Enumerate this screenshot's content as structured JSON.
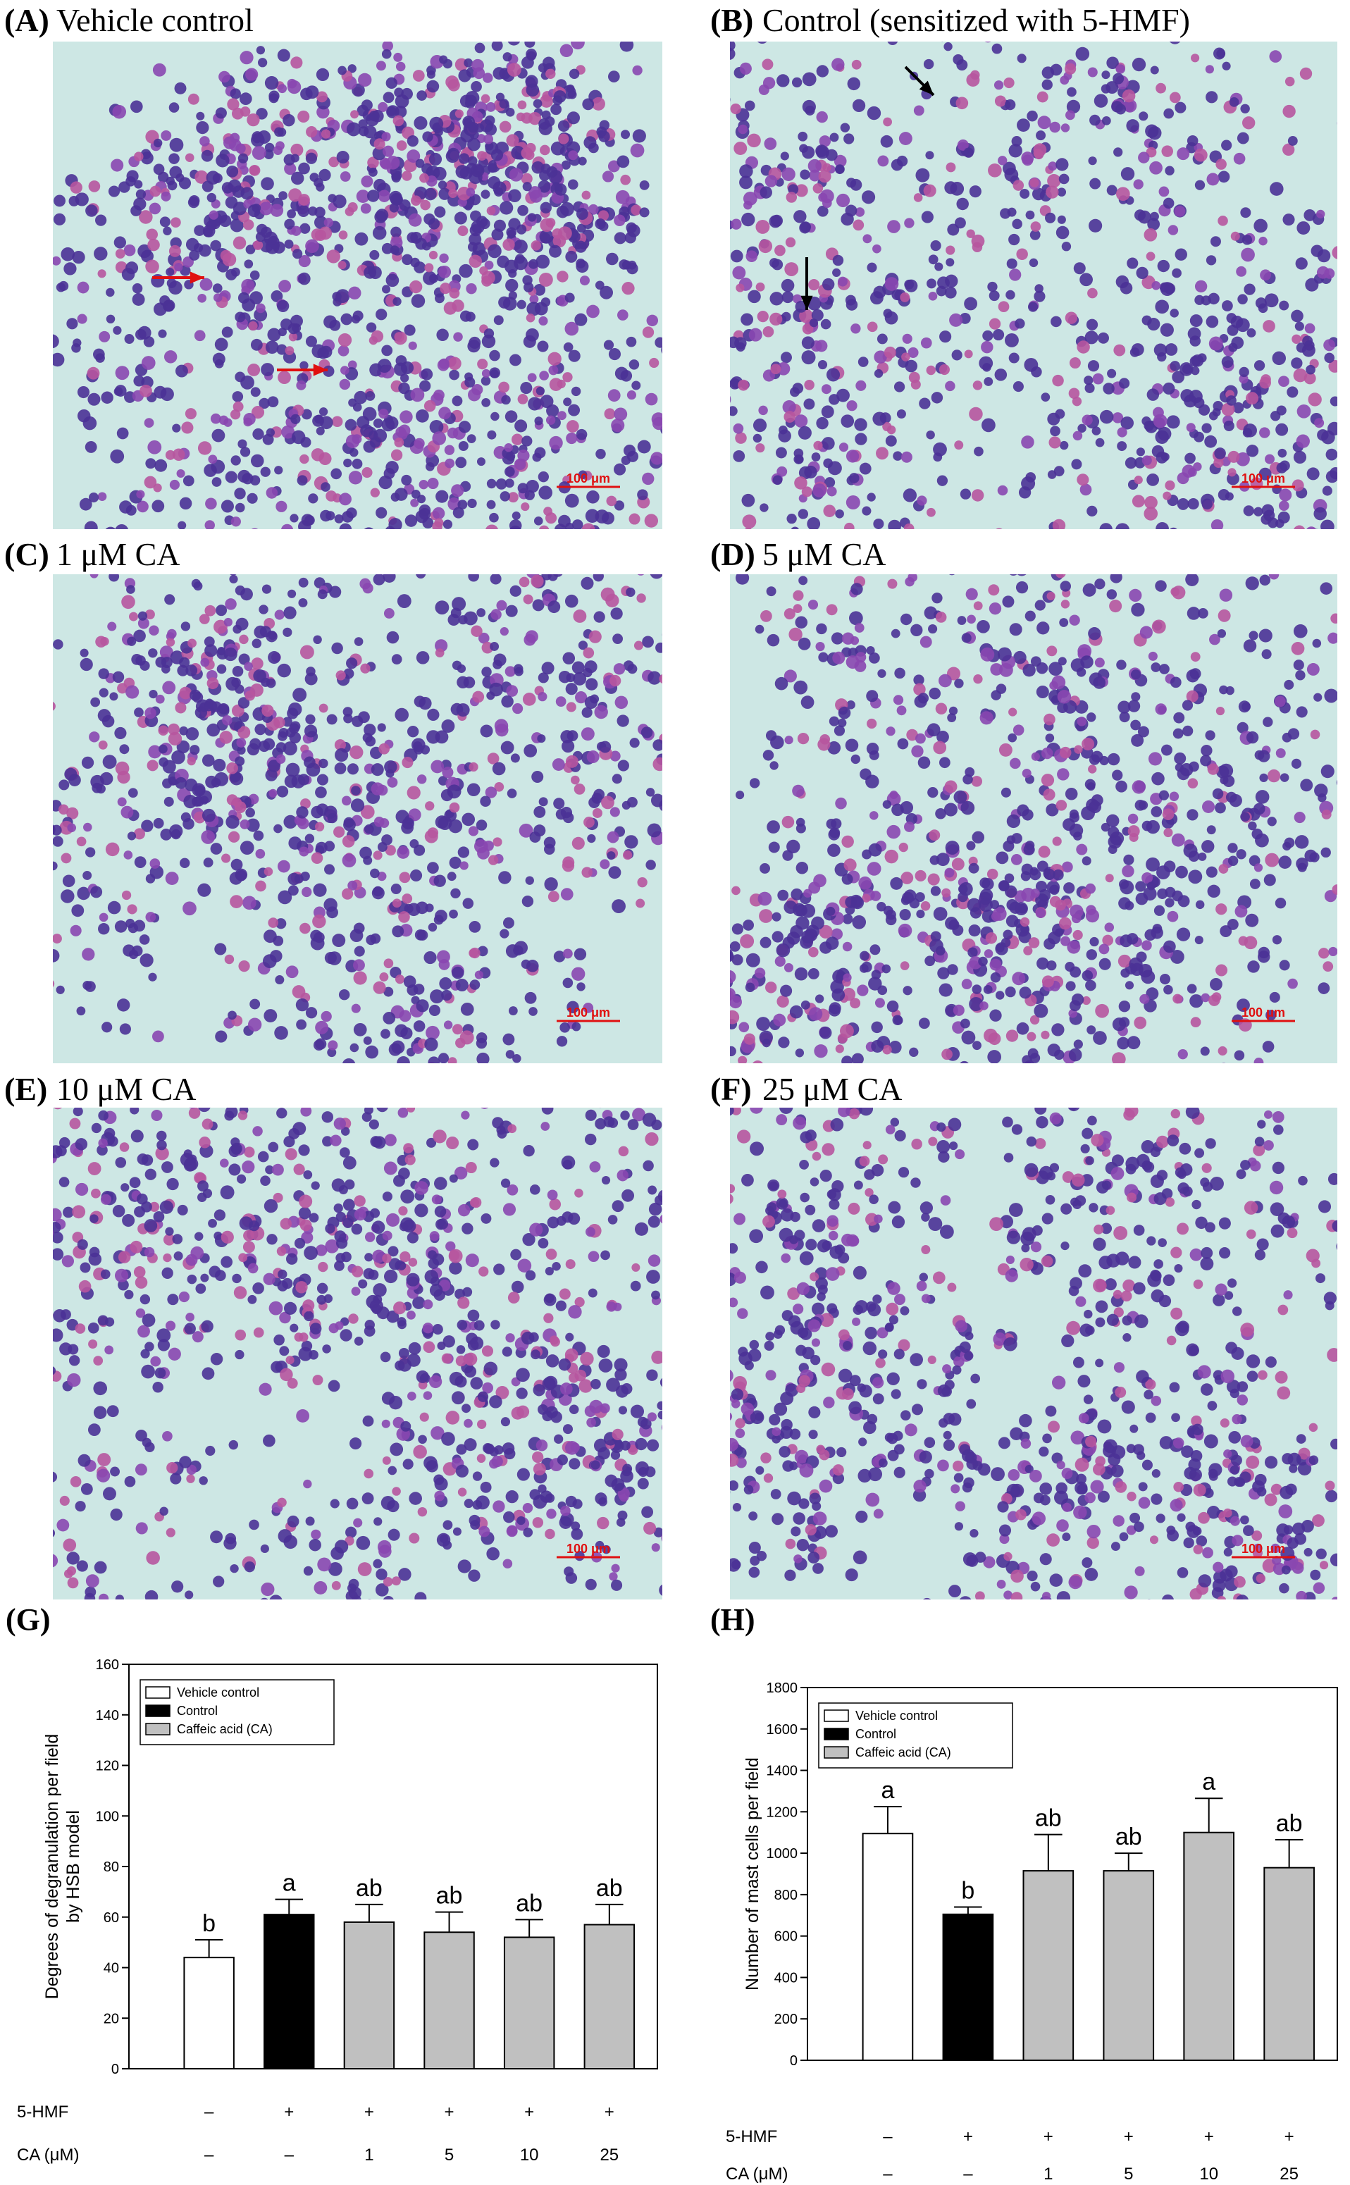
{
  "panels": [
    {
      "label": "(A)",
      "title": "Vehicle control",
      "scale_bar": "100 μm"
    },
    {
      "label": "(B)",
      "title": "Control (sensitized with 5-HMF)",
      "scale_bar": "100 μm"
    },
    {
      "label": "(C)",
      "title": "1 μM CA",
      "scale_bar": "100 μm"
    },
    {
      "label": "(D)",
      "title": "5 μM CA",
      "scale_bar": "100 μm"
    },
    {
      "label": "(E)",
      "title": "10 μM CA",
      "scale_bar": "100 μm"
    },
    {
      "label": "(F)",
      "title": "25 μM CA",
      "scale_bar": "100 μm"
    }
  ],
  "chart_data": [
    {
      "type": "bar",
      "label": "(G)",
      "ylabel": [
        "Degrees of degranulation per field",
        "by HSB model"
      ],
      "values": [
        44,
        61,
        58,
        54,
        52,
        57
      ],
      "errors": [
        7,
        6,
        7,
        8,
        7,
        8
      ],
      "colors": [
        "#ffffff",
        "#000000",
        "#c0c0c0",
        "#c0c0c0",
        "#c0c0c0",
        "#c0c0c0"
      ],
      "annotations": [
        "b",
        "a",
        "ab",
        "ab",
        "ab",
        "ab"
      ],
      "legend": [
        {
          "name": "Vehicle control",
          "color": "#ffffff"
        },
        {
          "name": "Control",
          "color": "#000000"
        },
        {
          "name": "Caffeic acid (CA)",
          "color": "#c0c0c0"
        }
      ],
      "treatments": [
        {
          "label": "5-HMF",
          "values": [
            "–",
            "+",
            "+",
            "+",
            "+",
            "+"
          ]
        },
        {
          "label": "CA (μM)",
          "values": [
            "–",
            "–",
            "1",
            "5",
            "10",
            "25"
          ]
        }
      ],
      "ylim": [
        0,
        160
      ],
      "yticks": [
        0,
        20,
        40,
        60,
        80,
        100,
        120,
        140,
        160
      ]
    },
    {
      "type": "bar",
      "label": "(H)",
      "ylabel": [
        "Number of mast cells per field"
      ],
      "values": [
        1095,
        705,
        915,
        915,
        1100,
        930
      ],
      "errors": [
        130,
        35,
        175,
        85,
        165,
        135
      ],
      "colors": [
        "#ffffff",
        "#000000",
        "#c0c0c0",
        "#c0c0c0",
        "#c0c0c0",
        "#c0c0c0"
      ],
      "annotations": [
        "a",
        "b",
        "ab",
        "ab",
        "a",
        "ab"
      ],
      "legend": [
        {
          "name": "Vehicle control",
          "color": "#ffffff"
        },
        {
          "name": "Control",
          "color": "#000000"
        },
        {
          "name": "Caffeic acid (CA)",
          "color": "#c0c0c0"
        }
      ],
      "treatments": [
        {
          "label": "5-HMF",
          "values": [
            "–",
            "+",
            "+",
            "+",
            "+",
            "+"
          ]
        },
        {
          "label": "CA (μM)",
          "values": [
            "–",
            "–",
            "1",
            "5",
            "10",
            "25"
          ]
        }
      ],
      "ylim": [
        0,
        1800
      ],
      "yticks": [
        0,
        200,
        400,
        600,
        800,
        1000,
        1200,
        1400,
        1600,
        1800
      ]
    }
  ]
}
